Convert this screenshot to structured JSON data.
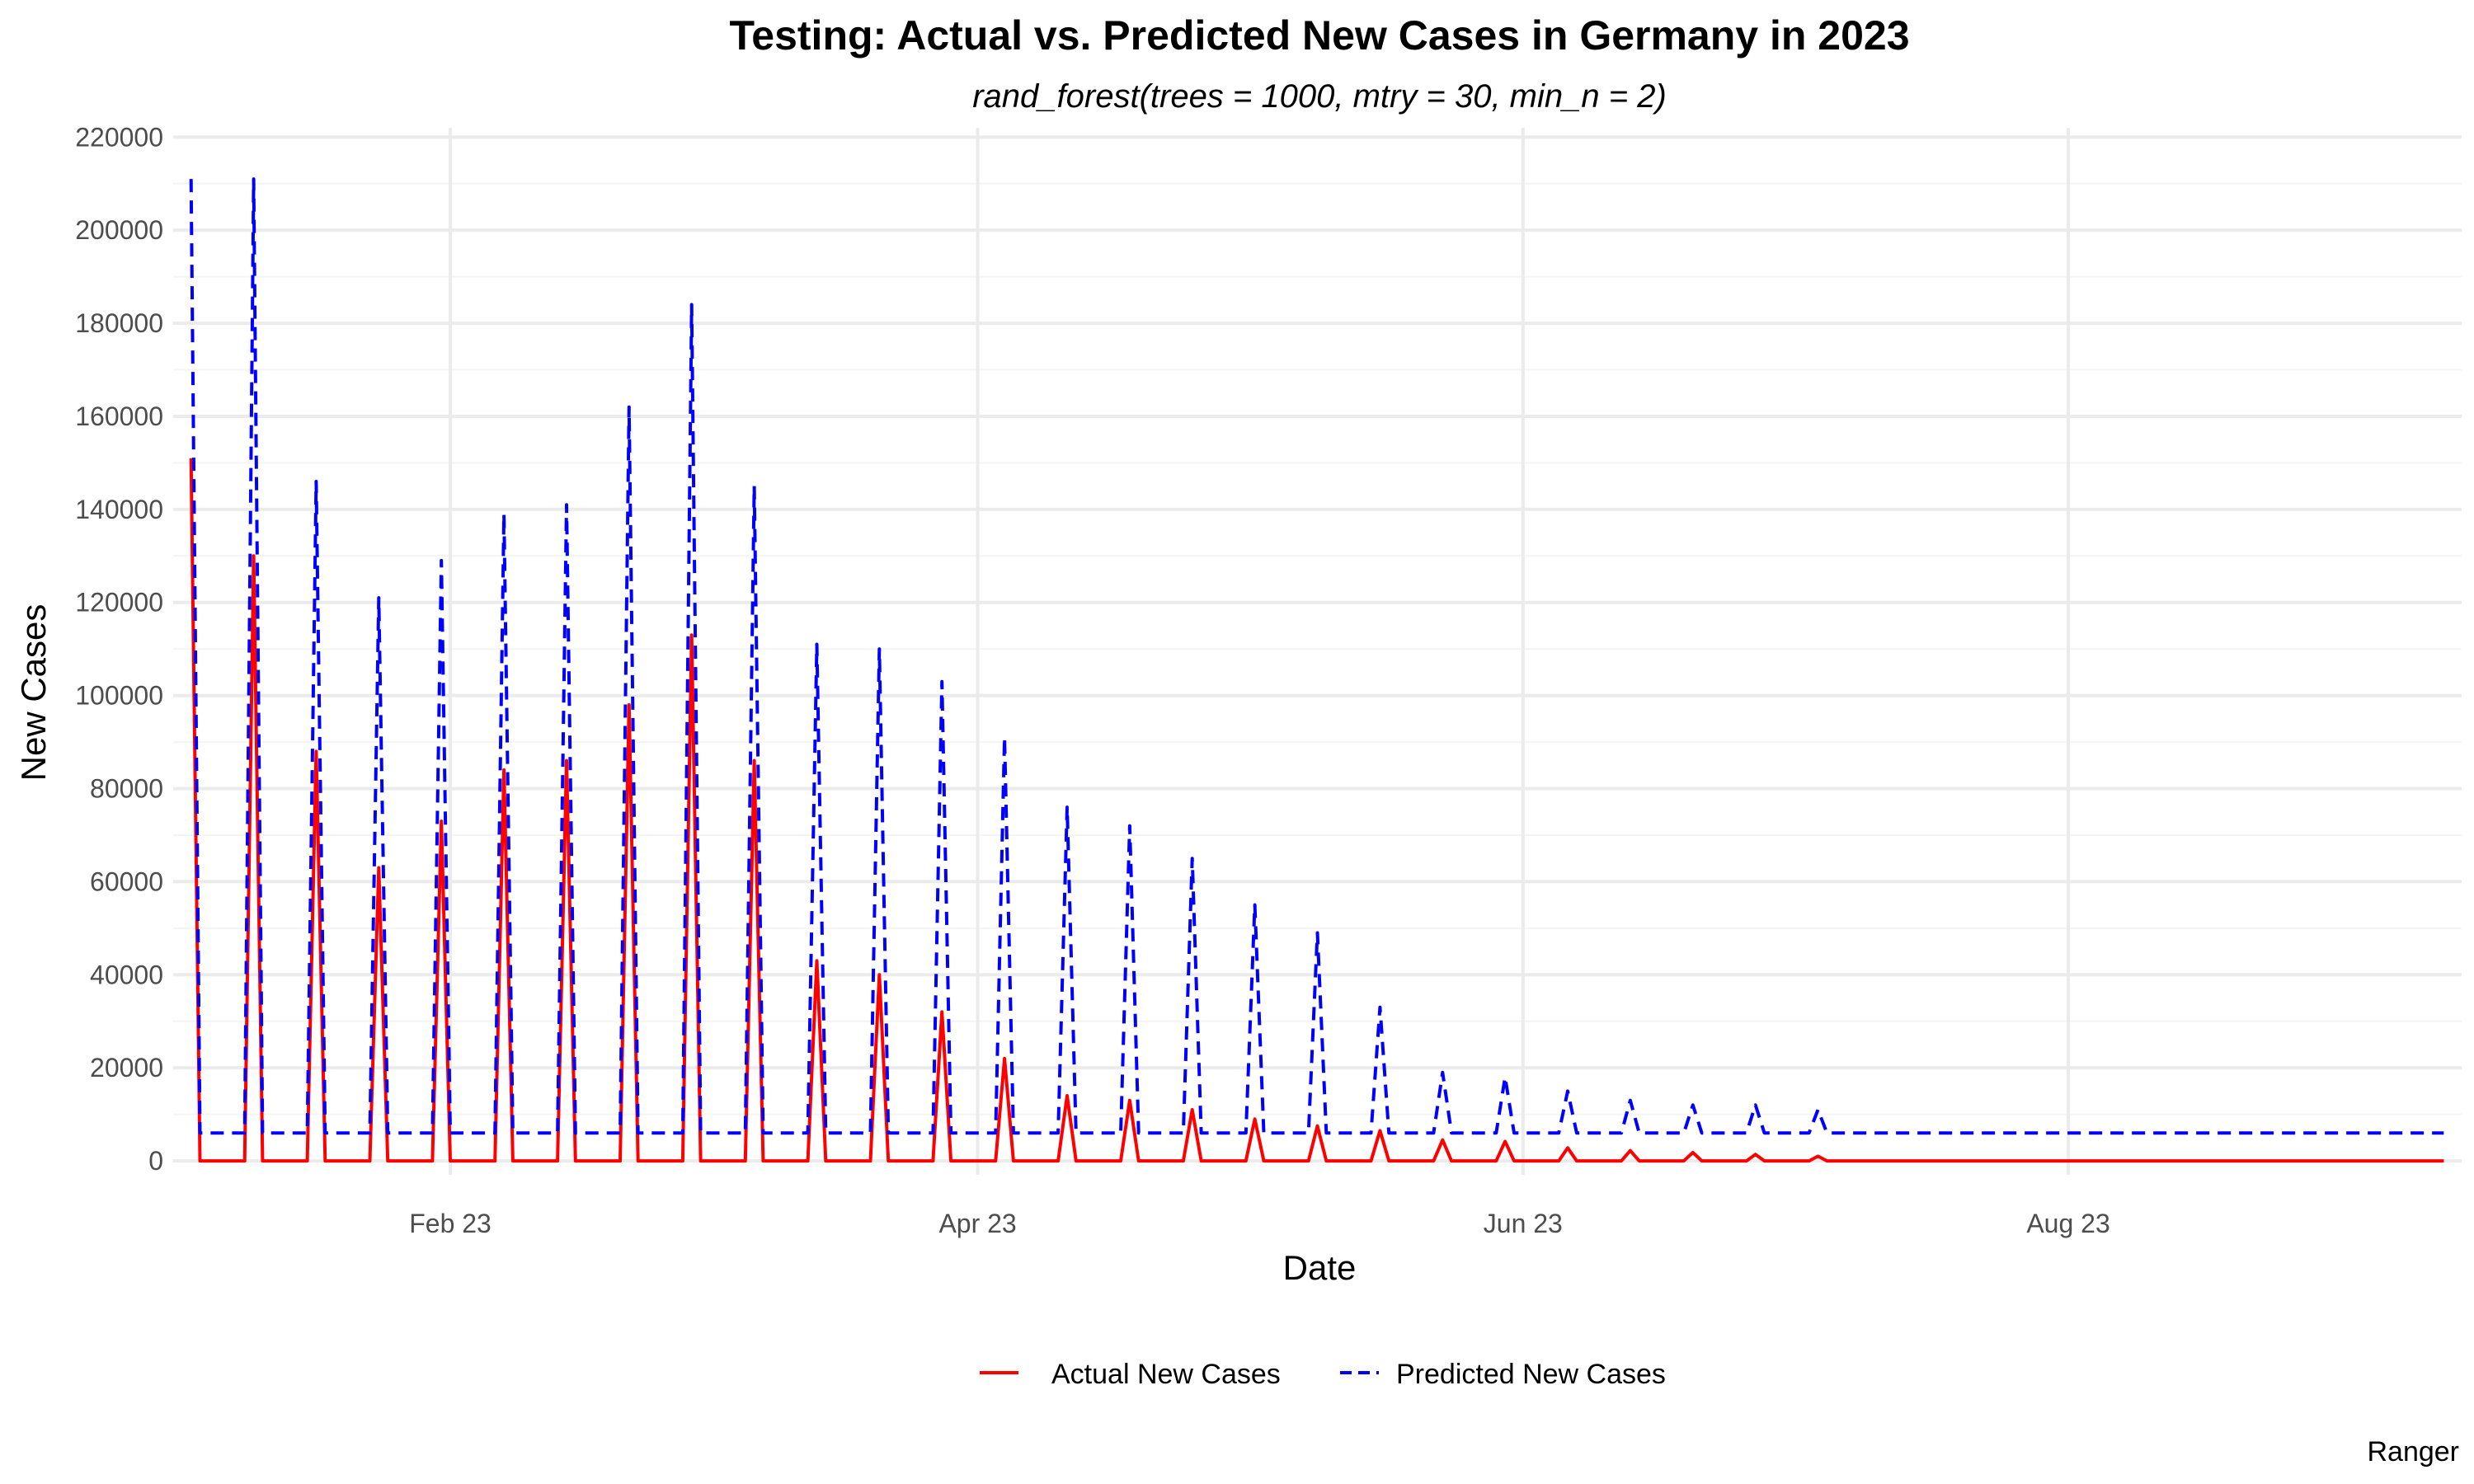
{
  "chart_data": {
    "type": "line",
    "title": "Testing: Actual vs. Predicted New Cases in Germany in 2023",
    "subtitle": "rand_forest(trees = 1000, mtry = 30, min_n = 2)",
    "xlabel": "Date",
    "ylabel": "New Cases",
    "caption": "Ranger",
    "xlim": [
      "2023-01-01",
      "2023-09-14"
    ],
    "ylim": [
      -3000,
      222000
    ],
    "x_ticks": [
      {
        "date": "2023-02-01",
        "label": "Feb 23"
      },
      {
        "date": "2023-04-01",
        "label": "Apr 23"
      },
      {
        "date": "2023-06-01",
        "label": "Jun 23"
      },
      {
        "date": "2023-08-01",
        "label": "Aug 23"
      }
    ],
    "y_ticks": [
      0,
      20000,
      40000,
      60000,
      80000,
      100000,
      120000,
      140000,
      160000,
      180000,
      200000,
      220000
    ],
    "grid": true,
    "legend_position": "bottom",
    "series": [
      {
        "name": "Actual New Cases",
        "color": "#ff0000",
        "dash": "solid",
        "baseline": 0,
        "start_date": "2023-01-03",
        "end_date": "2023-09-12",
        "peaks": [
          {
            "date": "2023-01-03",
            "value": 151000
          },
          {
            "date": "2023-01-10",
            "value": 130000
          },
          {
            "date": "2023-01-17",
            "value": 88000
          },
          {
            "date": "2023-01-24",
            "value": 63000
          },
          {
            "date": "2023-01-31",
            "value": 73000
          },
          {
            "date": "2023-02-07",
            "value": 84000
          },
          {
            "date": "2023-02-14",
            "value": 86000
          },
          {
            "date": "2023-02-21",
            "value": 98000
          },
          {
            "date": "2023-02-28",
            "value": 113000
          },
          {
            "date": "2023-03-07",
            "value": 86000
          },
          {
            "date": "2023-03-14",
            "value": 43000
          },
          {
            "date": "2023-03-21",
            "value": 40000
          },
          {
            "date": "2023-03-28",
            "value": 32000
          },
          {
            "date": "2023-04-04",
            "value": 22000
          },
          {
            "date": "2023-04-11",
            "value": 14000
          },
          {
            "date": "2023-04-18",
            "value": 13000
          },
          {
            "date": "2023-04-25",
            "value": 11000
          },
          {
            "date": "2023-05-02",
            "value": 9000
          },
          {
            "date": "2023-05-09",
            "value": 7500
          },
          {
            "date": "2023-05-16",
            "value": 6500
          },
          {
            "date": "2023-05-23",
            "value": 4500
          },
          {
            "date": "2023-05-30",
            "value": 4200
          },
          {
            "date": "2023-06-06",
            "value": 2800
          },
          {
            "date": "2023-06-13",
            "value": 2200
          },
          {
            "date": "2023-06-20",
            "value": 1800
          },
          {
            "date": "2023-06-27",
            "value": 1400
          },
          {
            "date": "2023-07-04",
            "value": 1000
          }
        ]
      },
      {
        "name": "Predicted New Cases",
        "color": "#0000ff",
        "dash": "dashed",
        "baseline": 6000,
        "start_date": "2023-01-03",
        "end_date": "2023-09-12",
        "peaks": [
          {
            "date": "2023-01-03",
            "value": 211000
          },
          {
            "date": "2023-01-10",
            "value": 211000
          },
          {
            "date": "2023-01-17",
            "value": 146000
          },
          {
            "date": "2023-01-24",
            "value": 121000
          },
          {
            "date": "2023-01-31",
            "value": 129000
          },
          {
            "date": "2023-02-07",
            "value": 139000
          },
          {
            "date": "2023-02-14",
            "value": 141000
          },
          {
            "date": "2023-02-21",
            "value": 162000
          },
          {
            "date": "2023-02-28",
            "value": 184000
          },
          {
            "date": "2023-03-07",
            "value": 145000
          },
          {
            "date": "2023-03-14",
            "value": 111000
          },
          {
            "date": "2023-03-21",
            "value": 110000
          },
          {
            "date": "2023-03-28",
            "value": 103000
          },
          {
            "date": "2023-04-04",
            "value": 91000
          },
          {
            "date": "2023-04-11",
            "value": 76000
          },
          {
            "date": "2023-04-18",
            "value": 72000
          },
          {
            "date": "2023-04-25",
            "value": 65000
          },
          {
            "date": "2023-05-02",
            "value": 55000
          },
          {
            "date": "2023-05-09",
            "value": 49000
          },
          {
            "date": "2023-05-16",
            "value": 33000
          },
          {
            "date": "2023-05-23",
            "value": 19000
          },
          {
            "date": "2023-05-30",
            "value": 18000
          },
          {
            "date": "2023-06-06",
            "value": 15000
          },
          {
            "date": "2023-06-13",
            "value": 13000
          },
          {
            "date": "2023-06-20",
            "value": 12000
          },
          {
            "date": "2023-06-27",
            "value": 12000
          },
          {
            "date": "2023-07-04",
            "value": 11000
          }
        ]
      }
    ]
  }
}
